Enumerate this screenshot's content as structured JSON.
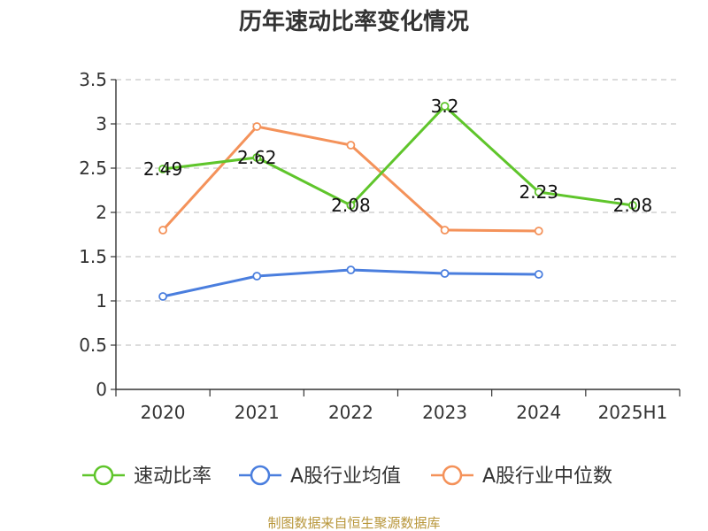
{
  "chart_data": {
    "type": "line",
    "title": "历年速动比率变化情况",
    "categories": [
      "2020",
      "2021",
      "2022",
      "2023",
      "2024",
      "2025H1"
    ],
    "ylim": [
      0,
      3.5
    ],
    "yticks": [
      "0",
      "0.5",
      "1",
      "1.5",
      "2",
      "2.5",
      "3",
      "3.5"
    ],
    "grid": true,
    "legend_position": "bottom",
    "series": [
      {
        "name": "速动比率",
        "color": "#5fc52b",
        "values": [
          2.49,
          2.62,
          2.08,
          3.2,
          2.23,
          2.08
        ],
        "labels": [
          "2.49",
          "2.62",
          "2.08",
          "3.2",
          "2.23",
          "2.08"
        ]
      },
      {
        "name": "A股行业均值",
        "color": "#4a7ede",
        "values": [
          1.05,
          1.28,
          1.35,
          1.31,
          1.3,
          null
        ]
      },
      {
        "name": "A股行业中位数",
        "color": "#f4925a",
        "values": [
          1.8,
          2.97,
          2.76,
          1.8,
          1.79,
          null
        ]
      }
    ]
  },
  "footer": {
    "source": "制图数据来自恒生聚源数据库"
  }
}
